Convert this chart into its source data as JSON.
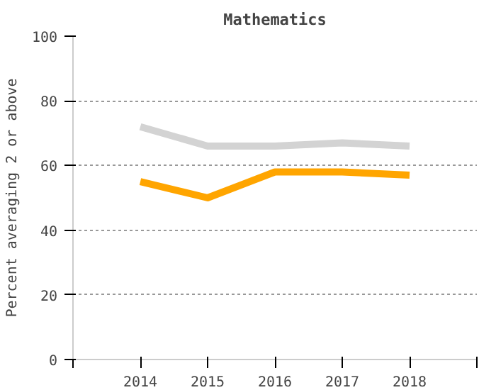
{
  "chart_data": {
    "type": "line",
    "title": "Mathematics",
    "ylabel": "Percent averaging 2 or above",
    "x": [
      2014,
      2015,
      2016,
      2017,
      2018
    ],
    "series": [
      {
        "color": "#d3d3d3",
        "values": [
          72,
          66,
          66,
          67,
          66
        ]
      },
      {
        "color": "#ffa500",
        "values": [
          55,
          50,
          58,
          58,
          57
        ]
      }
    ],
    "xlim": [
      2013,
      2019
    ],
    "xticks": [
      {
        "value": 2013,
        "label": null
      },
      2014,
      2015,
      2016,
      2017,
      2018,
      {
        "value": 2019,
        "label": null
      }
    ],
    "ylim": [
      0,
      100
    ],
    "yticks": [
      0,
      20,
      40,
      60,
      80,
      100
    ],
    "grid": "y",
    "marker": "none",
    "line_style": "solid"
  }
}
